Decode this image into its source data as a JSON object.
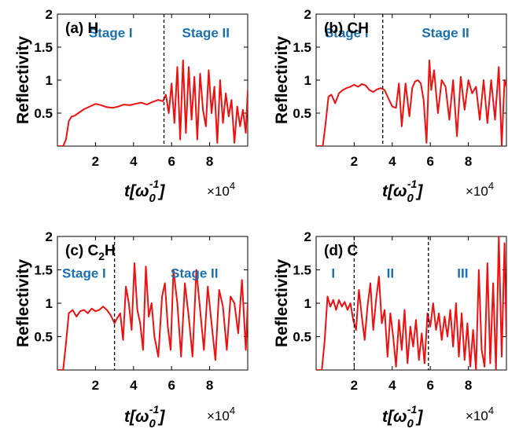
{
  "chart_data": [
    {
      "type": "line",
      "panel_label": "(a) H",
      "ylabel": "Reflectivity",
      "xlabel_base": "t[ω",
      "xlabel_sub": "0",
      "xlabel_sup": "-1",
      "xlabel_end": "]",
      "x_multiplier": "×10",
      "x_multiplier_exp": "4",
      "xlim": [
        0,
        10
      ],
      "ylim": [
        0,
        2
      ],
      "xticks": [
        2,
        4,
        6,
        8
      ],
      "xtick_labels": [
        "2",
        "4",
        "6",
        "8"
      ],
      "yticks": [
        0.5,
        1,
        1.5,
        2
      ],
      "ytick_labels": [
        "0.5",
        "1",
        "1.5",
        "2"
      ],
      "line_color": "#ee1111",
      "stage_color": "#1a6fb0",
      "dividers": [
        5.6
      ],
      "stages": [
        {
          "label": "Stage I",
          "x": 2.8,
          "y": 1.65
        },
        {
          "label": "Stage II",
          "x": 7.8,
          "y": 1.65
        }
      ],
      "series": [
        {
          "x": [
            0,
            0.3,
            0.45,
            0.6,
            0.75,
            0.9,
            1.1,
            1.4,
            1.7,
            2.0,
            2.3,
            2.6,
            2.9,
            3.2,
            3.5,
            3.8,
            4.1,
            4.4,
            4.7,
            5.0,
            5.3,
            5.55,
            5.7,
            5.85,
            6.0,
            6.15,
            6.3,
            6.45,
            6.6,
            6.75,
            6.9,
            7.05,
            7.2,
            7.35,
            7.5,
            7.65,
            7.8,
            7.95,
            8.1,
            8.25,
            8.4,
            8.55,
            8.7,
            8.85,
            9.0,
            9.15,
            9.3,
            9.45,
            9.6,
            9.75,
            9.9,
            10.0
          ],
          "y": [
            0,
            0,
            0.1,
            0.38,
            0.45,
            0.46,
            0.5,
            0.56,
            0.6,
            0.64,
            0.62,
            0.59,
            0.58,
            0.6,
            0.63,
            0.62,
            0.64,
            0.66,
            0.63,
            0.67,
            0.7,
            0.68,
            0.78,
            0.5,
            0.95,
            0.35,
            1.2,
            0.1,
            1.3,
            0.2,
            1.2,
            0.4,
            1.05,
            0.1,
            1.1,
            0.55,
            0.3,
            1.15,
            0.5,
            0.9,
            0.05,
            1.0,
            0.35,
            0.8,
            0.45,
            0.7,
            0.05,
            0.6,
            0.3,
            0.55,
            0.2,
            0.85
          ]
        }
      ]
    },
    {
      "type": "line",
      "panel_label": "(b) CH",
      "ylabel": "Reflectivity",
      "xlabel_base": "t[ω",
      "xlabel_sub": "0",
      "xlabel_sup": "-1",
      "xlabel_end": "]",
      "x_multiplier": "×10",
      "x_multiplier_exp": "4",
      "xlim": [
        0,
        10
      ],
      "ylim": [
        0,
        2
      ],
      "xticks": [
        2,
        4,
        6,
        8
      ],
      "xtick_labels": [
        "2",
        "4",
        "6",
        "8"
      ],
      "yticks": [
        0.5,
        1,
        1.5,
        2
      ],
      "ytick_labels": [
        "0.5",
        "1",
        "1.5",
        "2"
      ],
      "line_color": "#ee1111",
      "stage_color": "#1a6fb0",
      "dividers": [
        3.5
      ],
      "stages": [
        {
          "label": "Stage I",
          "x": 1.6,
          "y": 1.65
        },
        {
          "label": "Stage II",
          "x": 6.8,
          "y": 1.65
        }
      ],
      "series": [
        {
          "x": [
            0,
            0.35,
            0.5,
            0.65,
            0.8,
            1.0,
            1.2,
            1.4,
            1.6,
            1.8,
            2.0,
            2.2,
            2.4,
            2.6,
            2.8,
            3.0,
            3.2,
            3.4,
            3.6,
            3.8,
            4.0,
            4.2,
            4.35,
            4.5,
            4.7,
            4.9,
            5.05,
            5.2,
            5.35,
            5.5,
            5.65,
            5.8,
            5.95,
            6.05,
            6.2,
            6.4,
            6.6,
            6.8,
            7.0,
            7.2,
            7.4,
            7.6,
            7.8,
            8.0,
            8.2,
            8.4,
            8.6,
            8.8,
            9.0,
            9.2,
            9.4,
            9.6,
            9.75,
            9.9,
            10.0
          ],
          "y": [
            0,
            0,
            0.35,
            0.75,
            0.78,
            0.65,
            0.8,
            0.85,
            0.88,
            0.9,
            0.93,
            0.9,
            0.94,
            0.92,
            0.85,
            0.82,
            0.86,
            0.88,
            0.85,
            0.72,
            0.6,
            0.58,
            0.95,
            0.3,
            0.95,
            0.45,
            0.88,
            0.98,
            1.0,
            0.95,
            0.7,
            0.05,
            1.3,
            0.85,
            1.15,
            0.5,
            1.0,
            0.9,
            0.4,
            1.0,
            0.15,
            1.05,
            0.55,
            1.0,
            0.8,
            0.9,
            0.4,
            1.0,
            0.35,
            1.0,
            0.4,
            1.2,
            0.0,
            1.0,
            0.9
          ]
        }
      ]
    },
    {
      "type": "line",
      "panel_label_main": "(c) C",
      "panel_label_sub": "2",
      "panel_label_end": "H",
      "ylabel": "Reflectivity",
      "xlabel_base": "t[ω",
      "xlabel_sub": "0",
      "xlabel_sup": "-1",
      "xlabel_end": "]",
      "x_multiplier": "×10",
      "x_multiplier_exp": "4",
      "xlim": [
        0,
        10
      ],
      "ylim": [
        0,
        2
      ],
      "xticks": [
        2,
        4,
        6,
        8
      ],
      "xtick_labels": [
        "2",
        "4",
        "6",
        "8"
      ],
      "yticks": [
        0.5,
        1,
        1.5,
        2
      ],
      "ytick_labels": [
        "0.5",
        "1",
        "1.5",
        "2"
      ],
      "line_color": "#ee1111",
      "stage_color": "#1a6fb0",
      "dividers": [
        3.0
      ],
      "stages": [
        {
          "label": "Stage I",
          "x": 1.4,
          "y": 1.38
        },
        {
          "label": "Stage II",
          "x": 7.2,
          "y": 1.38
        }
      ],
      "series": [
        {
          "x": [
            0,
            0.3,
            0.45,
            0.6,
            0.8,
            1.0,
            1.2,
            1.4,
            1.6,
            1.8,
            2.0,
            2.2,
            2.4,
            2.6,
            2.8,
            3.0,
            3.15,
            3.3,
            3.45,
            3.6,
            3.75,
            3.9,
            4.05,
            4.2,
            4.35,
            4.5,
            4.65,
            4.8,
            4.95,
            5.1,
            5.3,
            5.5,
            5.65,
            5.8,
            5.95,
            6.1,
            6.3,
            6.5,
            6.7,
            6.9,
            7.1,
            7.3,
            7.5,
            7.7,
            7.9,
            8.1,
            8.3,
            8.5,
            8.7,
            8.9,
            9.1,
            9.3,
            9.5,
            9.7,
            9.9,
            10.0
          ],
          "y": [
            0,
            0,
            0.4,
            0.85,
            0.9,
            0.8,
            0.88,
            0.9,
            0.85,
            0.92,
            0.88,
            0.9,
            0.95,
            0.9,
            0.82,
            0.7,
            0.78,
            0.85,
            0.45,
            1.25,
            1.0,
            0.6,
            1.6,
            0.9,
            0.7,
            0.3,
            1.55,
            0.8,
            1.0,
            0.5,
            0.2,
            1.1,
            1.3,
            0.65,
            0.3,
            1.5,
            1.0,
            0.2,
            1.3,
            0.8,
            0.2,
            1.5,
            0.9,
            0.3,
            1.25,
            0.7,
            0.15,
            1.2,
            0.95,
            0.3,
            1.1,
            1.0,
            0.55,
            1.35,
            0.3,
            1.0
          ]
        }
      ]
    },
    {
      "type": "line",
      "panel_label": "(d) C",
      "ylabel": "Reflectivity",
      "xlabel_base": "t[ω",
      "xlabel_sub": "0",
      "xlabel_sup": "-1",
      "xlabel_end": "]",
      "x_multiplier": "×10",
      "x_multiplier_exp": "4",
      "xlim": [
        0,
        10
      ],
      "ylim": [
        0,
        2
      ],
      "xticks": [
        2,
        4,
        6,
        8
      ],
      "xtick_labels": [
        "2",
        "4",
        "6",
        "8"
      ],
      "yticks": [
        0.5,
        1,
        1.5,
        2
      ],
      "ytick_labels": [
        "0.5",
        "1",
        "1.5",
        "2"
      ],
      "line_color": "#ee1111",
      "stage_color": "#1a6fb0",
      "dividers": [
        2.0,
        5.9
      ],
      "stages": [
        {
          "label": "I",
          "x": 0.9,
          "y": 1.38
        },
        {
          "label": "II",
          "x": 3.9,
          "y": 1.38
        },
        {
          "label": "III",
          "x": 7.7,
          "y": 1.38
        }
      ],
      "series": [
        {
          "x": [
            0,
            0.3,
            0.45,
            0.6,
            0.75,
            0.9,
            1.05,
            1.2,
            1.35,
            1.5,
            1.65,
            1.8,
            1.95,
            2.1,
            2.25,
            2.4,
            2.55,
            2.7,
            2.85,
            3.0,
            3.15,
            3.3,
            3.45,
            3.6,
            3.75,
            3.9,
            4.05,
            4.2,
            4.35,
            4.5,
            4.65,
            4.8,
            4.95,
            5.1,
            5.25,
            5.4,
            5.55,
            5.7,
            5.85,
            6.0,
            6.15,
            6.3,
            6.45,
            6.6,
            6.75,
            6.9,
            7.05,
            7.2,
            7.35,
            7.5,
            7.65,
            7.8,
            7.95,
            8.1,
            8.25,
            8.4,
            8.55,
            8.7,
            8.85,
            9.0,
            9.15,
            9.3,
            9.45,
            9.6,
            9.75,
            9.9,
            10.0
          ],
          "y": [
            0,
            0,
            0.45,
            1.1,
            0.95,
            1.05,
            0.9,
            1.05,
            0.95,
            1.02,
            0.9,
            1.0,
            0.75,
            0.6,
            1.2,
            0.8,
            0.45,
            0.95,
            1.3,
            0.6,
            1.05,
            1.4,
            0.7,
            0.9,
            0.2,
            0.85,
            0.5,
            0.05,
            0.75,
            0.3,
            0.9,
            0.1,
            0.65,
            0.35,
            0.75,
            0.15,
            0.55,
            0.1,
            0.85,
            0.65,
            1.0,
            0.6,
            0.85,
            0.45,
            0.8,
            0.5,
            0.9,
            0.35,
            1.0,
            0.2,
            0.85,
            0.15,
            0.7,
            0.05,
            0.6,
            0.0,
            1.5,
            0.3,
            0.05,
            1.6,
            0.1,
            1.3,
            0.0,
            2.0,
            0.2,
            1.9,
            0.5
          ]
        }
      ]
    }
  ]
}
